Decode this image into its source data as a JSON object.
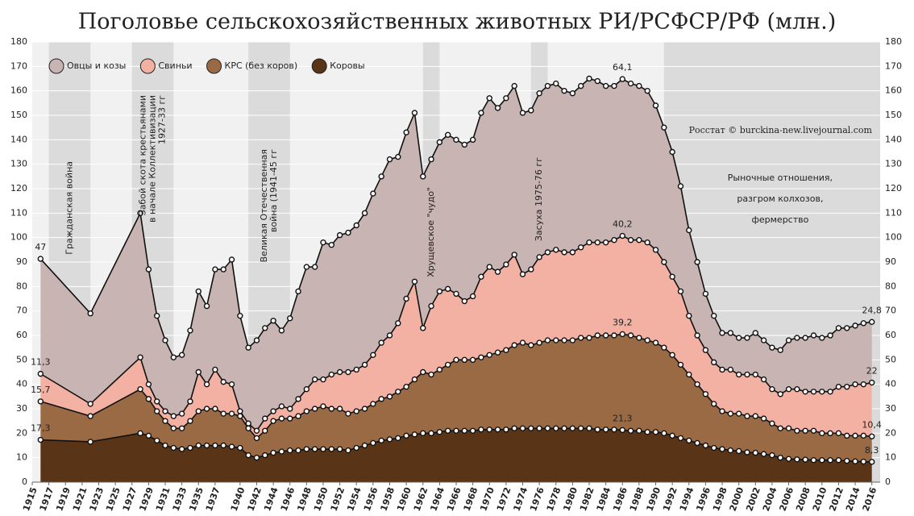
{
  "chart_data": {
    "type": "stacked_area",
    "title": "Поголовье сельскохозяйственных животных РИ/РСФСР/РФ (млн.)",
    "watermark": "Росстат © burckina-new.livejournal.com",
    "legend": "top-left",
    "xlim": [
      1915,
      2017
    ],
    "xticks": [
      1915,
      1917,
      1919,
      1921,
      1923,
      1925,
      1927,
      1929,
      1931,
      1933,
      1935,
      1937,
      1940,
      1942,
      1944,
      1946,
      1948,
      1950,
      1952,
      1954,
      1956,
      1958,
      1960,
      1962,
      1964,
      1966,
      1968,
      1970,
      1972,
      1974,
      1976,
      1978,
      1980,
      1982,
      1984,
      1986,
      1988,
      1990,
      1992,
      1994,
      1996,
      1998,
      2000,
      2002,
      2004,
      2006,
      2008,
      2010,
      2012,
      2014,
      2016
    ],
    "ylim": [
      0,
      180
    ],
    "yticks": [
      0,
      10,
      20,
      30,
      40,
      50,
      60,
      70,
      80,
      90,
      100,
      110,
      120,
      130,
      140,
      150,
      160,
      170,
      180
    ],
    "y2lim": [
      0,
      180
    ],
    "y2ticks": [
      0,
      10,
      20,
      30,
      40,
      50,
      60,
      70,
      80,
      90,
      100,
      110,
      120,
      130,
      140,
      150,
      160,
      170,
      180
    ],
    "x": [
      1916,
      1922,
      1928,
      1929,
      1930,
      1931,
      1932,
      1933,
      1934,
      1935,
      1936,
      1937,
      1938,
      1939,
      1940,
      1941,
      1942,
      1943,
      1944,
      1945,
      1946,
      1947,
      1948,
      1949,
      1950,
      1951,
      1952,
      1953,
      1954,
      1955,
      1956,
      1957,
      1958,
      1959,
      1960,
      1961,
      1962,
      1963,
      1964,
      1965,
      1966,
      1967,
      1968,
      1969,
      1970,
      1971,
      1972,
      1973,
      1974,
      1975,
      1976,
      1977,
      1978,
      1979,
      1980,
      1981,
      1982,
      1983,
      1984,
      1985,
      1986,
      1987,
      1988,
      1989,
      1990,
      1991,
      1992,
      1993,
      1994,
      1995,
      1996,
      1997,
      1998,
      1999,
      2000,
      2001,
      2002,
      2003,
      2004,
      2005,
      2006,
      2007,
      2008,
      2009,
      2010,
      2011,
      2012,
      2013,
      2014,
      2015,
      2016
    ],
    "series": [
      {
        "name": "Овцы и козы",
        "color": "#c8b4b2",
        "values": [
          47,
          37,
          59,
          47,
          35,
          29,
          24,
          24,
          29,
          33,
          32,
          41,
          46,
          51,
          39,
          31,
          37,
          37,
          37,
          31,
          37,
          44,
          50,
          46,
          56,
          53,
          56,
          57,
          59,
          62,
          66,
          68,
          72,
          68,
          68,
          69,
          62,
          60,
          61,
          63,
          63,
          64,
          64,
          67,
          69,
          67,
          68,
          69,
          66,
          65,
          67,
          68,
          68,
          66,
          65,
          66,
          67,
          66,
          64,
          63,
          64.1,
          64,
          63,
          62,
          59,
          55,
          51,
          43,
          35,
          30,
          23,
          19,
          15,
          15,
          15,
          15,
          17,
          16,
          17,
          18,
          20,
          21,
          22,
          23,
          22,
          23,
          24,
          24,
          24,
          25,
          24.8
        ],
        "value_labels": [
          "47",
          null,
          null,
          null,
          null,
          null,
          null,
          null,
          null,
          null,
          null,
          null,
          null,
          null,
          null,
          null,
          null,
          null,
          null,
          null,
          null,
          null,
          null,
          null,
          null,
          null,
          null,
          null,
          null,
          null,
          null,
          null,
          null,
          null,
          null,
          null,
          null,
          null,
          null,
          null,
          null,
          null,
          null,
          null,
          null,
          null,
          null,
          null,
          null,
          null,
          null,
          null,
          null,
          null,
          null,
          null,
          null,
          null,
          null,
          null,
          "64,1",
          null,
          null,
          null,
          null,
          null,
          null,
          null,
          null,
          null,
          null,
          null,
          null,
          null,
          null,
          null,
          null,
          null,
          null,
          null,
          null,
          null,
          null,
          null,
          null,
          null,
          null,
          null,
          null,
          null,
          "24,8"
        ]
      },
      {
        "name": "Свиньи",
        "color": "#f2b1a2",
        "values": [
          11.3,
          5,
          13,
          6,
          4,
          4,
          5,
          6,
          8,
          16,
          10,
          16,
          13,
          12,
          2,
          2,
          3,
          5,
          4,
          5,
          4,
          7,
          9,
          12,
          11,
          14,
          15,
          17,
          17,
          18,
          20,
          23,
          25,
          28,
          36,
          40,
          18,
          28,
          32,
          31,
          27,
          24,
          26,
          33,
          36,
          33,
          35,
          37,
          28,
          31,
          35,
          36,
          37,
          36,
          36,
          37,
          39,
          38,
          38,
          39,
          40.2,
          39,
          40,
          40,
          38,
          35,
          32,
          30,
          24,
          20,
          18,
          17,
          17,
          18,
          16,
          17,
          17,
          16,
          14,
          14,
          16,
          17,
          16,
          16,
          17,
          17,
          19,
          20,
          21,
          21,
          22
        ],
        "value_labels": [
          "11,3",
          null,
          null,
          null,
          null,
          null,
          null,
          null,
          null,
          null,
          null,
          null,
          null,
          null,
          null,
          null,
          null,
          null,
          null,
          null,
          null,
          null,
          null,
          null,
          null,
          null,
          null,
          null,
          null,
          null,
          null,
          null,
          null,
          null,
          null,
          null,
          null,
          null,
          null,
          null,
          null,
          null,
          null,
          null,
          null,
          null,
          null,
          null,
          null,
          null,
          null,
          null,
          null,
          null,
          null,
          null,
          null,
          null,
          null,
          null,
          "40,2",
          null,
          null,
          null,
          null,
          null,
          null,
          null,
          null,
          null,
          null,
          null,
          null,
          null,
          null,
          null,
          null,
          null,
          null,
          null,
          null,
          null,
          null,
          null,
          null,
          null,
          null,
          null,
          null,
          null,
          "22"
        ]
      },
      {
        "name": "КРС (без коров)",
        "color": "#9a6a44",
        "values": [
          15.7,
          10.5,
          18,
          15,
          12,
          10,
          8,
          8.5,
          11,
          14,
          15,
          15,
          13,
          13.5,
          13,
          11,
          8,
          10,
          13,
          13.5,
          13,
          14,
          15.5,
          16.5,
          17.5,
          16.5,
          16.5,
          15,
          15,
          15,
          16,
          17,
          17.5,
          19,
          20,
          22.5,
          25,
          24,
          25.5,
          27,
          29,
          29,
          29,
          29.5,
          30.5,
          31.5,
          32.5,
          34,
          35,
          34,
          35,
          36,
          36,
          36,
          36,
          37,
          37,
          38.5,
          38.5,
          38.5,
          39.2,
          39,
          38,
          37.5,
          36.5,
          35,
          33,
          30,
          27,
          24,
          21,
          18,
          15.5,
          15,
          15.3,
          14.8,
          15,
          14.5,
          13,
          12,
          12.5,
          11.7,
          11.8,
          12,
          11,
          11,
          11,
          10.3,
          10.5,
          10.6,
          10.4
        ],
        "value_labels": [
          "15,7",
          null,
          null,
          null,
          null,
          null,
          null,
          null,
          null,
          null,
          null,
          null,
          null,
          null,
          null,
          null,
          null,
          null,
          null,
          null,
          null,
          null,
          null,
          null,
          null,
          null,
          null,
          null,
          null,
          null,
          null,
          null,
          null,
          null,
          null,
          null,
          null,
          null,
          null,
          null,
          null,
          null,
          null,
          null,
          null,
          null,
          null,
          null,
          null,
          null,
          null,
          null,
          null,
          null,
          null,
          null,
          null,
          null,
          null,
          null,
          "39,2",
          null,
          null,
          null,
          null,
          null,
          null,
          null,
          null,
          null,
          null,
          null,
          null,
          null,
          null,
          null,
          null,
          null,
          null,
          null,
          null,
          null,
          null,
          null,
          null,
          null,
          null,
          null,
          null,
          null,
          "10,4"
        ]
      },
      {
        "name": "Коровы",
        "color": "#5a3416",
        "values": [
          17.3,
          16.5,
          20,
          19,
          17,
          15,
          14,
          13.5,
          14,
          15,
          15,
          15,
          15,
          14.5,
          14,
          11,
          10,
          11,
          12,
          12.5,
          13,
          13,
          13.5,
          13.5,
          13.5,
          13.5,
          13.5,
          13,
          14,
          15,
          16,
          17,
          17.5,
          18,
          19,
          19.5,
          20,
          20,
          20.5,
          21,
          21,
          21,
          21,
          21.5,
          21.5,
          21.5,
          21.5,
          22,
          22,
          22,
          22,
          22,
          22,
          22,
          22,
          22,
          22,
          21.5,
          21.5,
          21.5,
          21.3,
          21,
          21,
          20.5,
          20.5,
          20,
          19,
          18,
          17,
          16,
          15,
          14,
          13.5,
          13,
          12.7,
          12.2,
          12,
          11.5,
          11,
          10,
          9.5,
          9.3,
          9.2,
          9,
          9,
          9,
          9,
          8.7,
          8.5,
          8.4,
          8.3
        ],
        "value_labels": [
          "17,3",
          null,
          null,
          null,
          null,
          null,
          null,
          null,
          null,
          null,
          null,
          null,
          null,
          null,
          null,
          null,
          null,
          null,
          null,
          null,
          null,
          null,
          null,
          null,
          null,
          null,
          null,
          null,
          null,
          null,
          null,
          null,
          null,
          null,
          null,
          null,
          null,
          null,
          null,
          null,
          null,
          null,
          null,
          null,
          null,
          null,
          null,
          null,
          null,
          null,
          null,
          null,
          null,
          null,
          null,
          null,
          null,
          null,
          null,
          null,
          "21,3",
          null,
          null,
          null,
          null,
          null,
          null,
          null,
          null,
          null,
          null,
          null,
          null,
          null,
          null,
          null,
          null,
          null,
          null,
          null,
          null,
          null,
          null,
          null,
          null,
          null,
          null,
          null,
          null,
          null,
          "8,3"
        ]
      }
    ],
    "annotations": [
      {
        "text": [
          "Гражданская война"
        ],
        "x": [
          1917,
          1922
        ]
      },
      {
        "text": [
          "Забой скота крестьянами",
          "в начале Коллективизации",
          "1927-33 гг"
        ],
        "x": [
          1927,
          1932
        ]
      },
      {
        "text": [
          "Великая Отечественная",
          "война (1941-45 гг"
        ],
        "x": [
          1941,
          1946
        ]
      },
      {
        "text": [
          "Хрущевское \"чудо\""
        ],
        "x": [
          1962,
          1964
        ]
      },
      {
        "text": [
          "Засуха 1975-76 гг"
        ],
        "x": [
          1975,
          1977
        ]
      },
      {
        "text": [
          "Рыночные отношения,",
          "разгром колхозов,",
          "фермерство"
        ],
        "x": [
          1991,
          2017
        ]
      }
    ]
  }
}
